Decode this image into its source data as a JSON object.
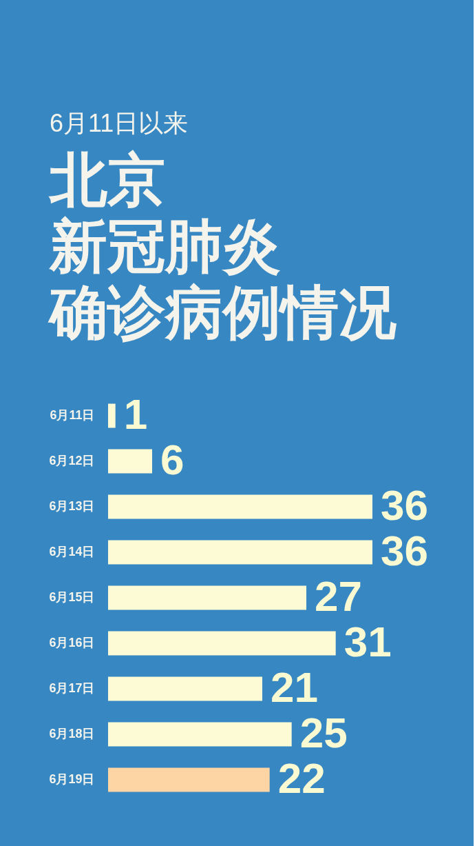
{
  "chart_data": {
    "type": "bar",
    "orientation": "horizontal",
    "subtitle": "6月11日以来",
    "title": "北京新冠肺炎确诊病例情况",
    "categories": [
      "6月11日",
      "6月12日",
      "6月13日",
      "6月14日",
      "6月15日",
      "6月16日",
      "6月17日",
      "6月18日",
      "6月19日"
    ],
    "values": [
      1,
      6,
      36,
      36,
      27,
      31,
      21,
      25,
      22
    ],
    "colors": [
      "#fcfbd6",
      "#fcfbd6",
      "#fcfbd6",
      "#fcfbd6",
      "#fcfbd6",
      "#fcfbd6",
      "#fcfbd6",
      "#fcfbd6",
      "#fdd5a5"
    ],
    "data_labels": true
  }
}
